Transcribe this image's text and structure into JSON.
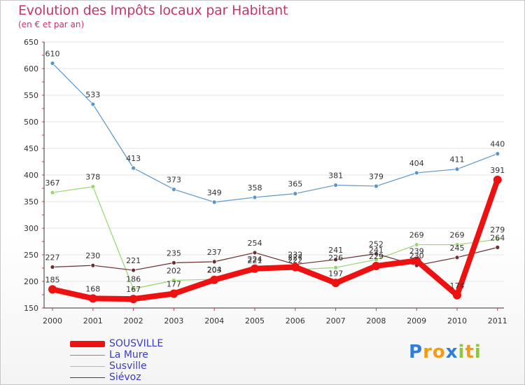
{
  "chart_data": {
    "type": "line",
    "title": "Evolution des Impôts locaux par Habitant",
    "subtitle": "(en € et par an)",
    "xlabel": "",
    "ylabel": "",
    "ylim": [
      150,
      650
    ],
    "yticks": [
      150,
      200,
      250,
      300,
      350,
      400,
      450,
      500,
      550,
      600,
      650
    ],
    "categories": [
      "2000",
      "2001",
      "2002",
      "2003",
      "2004",
      "2005",
      "2006",
      "2007",
      "2008",
      "2009",
      "2010",
      "2011"
    ],
    "series": [
      {
        "name": "La Mure",
        "color": "#5b96c8",
        "values": [
          610,
          533,
          413,
          373,
          349,
          358,
          365,
          381,
          379,
          404,
          411,
          440
        ]
      },
      {
        "name": "Susville",
        "color": "#98d66e",
        "values": [
          367,
          378,
          186,
          202,
          204,
          221,
          222,
          226,
          241,
          269,
          269,
          279
        ]
      },
      {
        "name": "Siévoz",
        "color": "#6b2e33",
        "values": [
          227,
          230,
          221,
          235,
          237,
          254,
          232,
          241,
          252,
          230,
          245,
          264
        ]
      },
      {
        "name": "SOUSVILLE",
        "color": "#ee1111",
        "values": [
          185,
          168,
          167,
          177,
          203,
          224,
          227,
          197,
          229,
          239,
          174,
          391
        ]
      }
    ],
    "legend": [
      "SOUSVILLE",
      "La Mure",
      "Susville",
      "Siévoz"
    ]
  },
  "logo": {
    "text": "Proxiti",
    "letters": [
      "P",
      "r",
      "o",
      "x",
      "i",
      "t",
      "i"
    ]
  }
}
